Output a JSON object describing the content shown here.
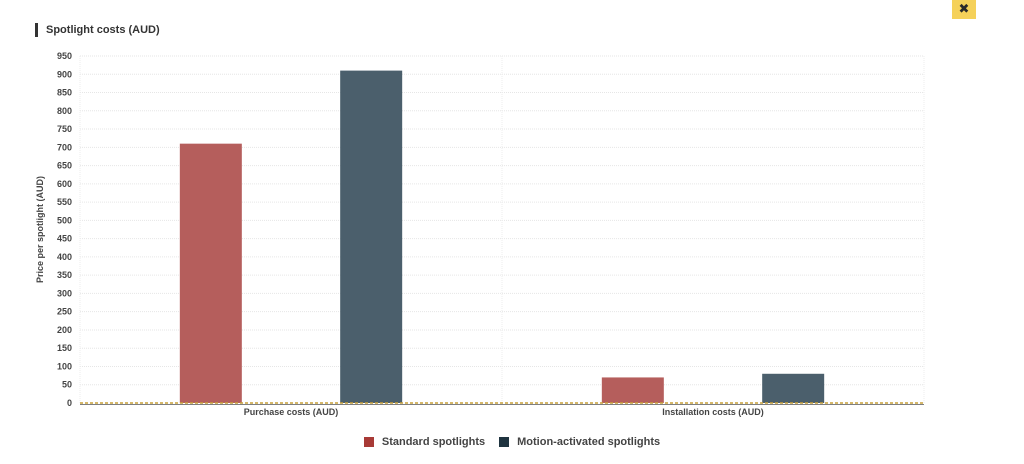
{
  "close_label": "✖",
  "chart_data": {
    "type": "bar",
    "title": "Spotlight costs (AUD)",
    "xlabel": "",
    "ylabel": "Price per spotlight (AUD)",
    "ylim": [
      0,
      950
    ],
    "yticks": [
      0,
      50,
      100,
      150,
      200,
      250,
      300,
      350,
      400,
      450,
      500,
      550,
      600,
      650,
      700,
      750,
      800,
      850,
      900,
      950
    ],
    "grid": true,
    "legend_position": "bottom-center",
    "categories": [
      "Purchase costs (AUD)",
      "Installation costs (AUD)"
    ],
    "series": [
      {
        "name": "Standard spotlights",
        "color": "#b55e5c",
        "values": [
          710,
          70
        ]
      },
      {
        "name": "Motion-activated spotlights",
        "color": "#4b5f6c",
        "values": [
          910,
          80
        ]
      }
    ]
  },
  "legend": {
    "swatch_colors": [
      "#a83a36",
      "#1f3440"
    ]
  }
}
